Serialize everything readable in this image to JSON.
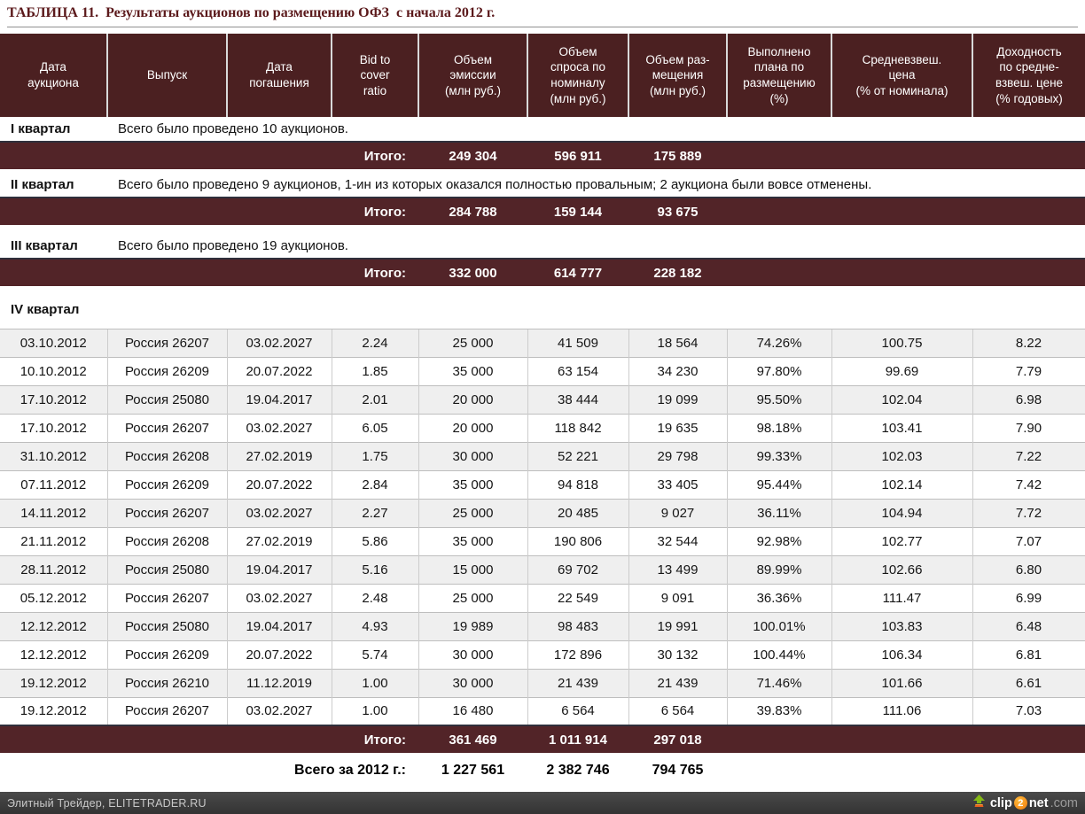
{
  "page": {
    "title": "ТАБЛИЦА 11.  Результаты аукционов по размещению ОФЗ  с начала 2012 г."
  },
  "colors": {
    "header_bg": "#4B2021",
    "total_band_bg": "#522428",
    "row_alt_bg": "#EFEFEF",
    "title_text": "#5B191B",
    "footer_bg": "#3B3B3B",
    "logo_badge_orange": "#F7941E",
    "logo_arrow_green": "#85B916"
  },
  "table": {
    "columns": [
      "Дата\nаукциона",
      "Выпуск",
      "Дата\nпогашения",
      "Bid to\ncover\nratio",
      "Объем\nэмиссии\n(млн руб.)",
      "Объем\nспроса по\nноминалу\n(млн руб.)",
      "Объем раз-\nмещения\n(млн руб.)",
      "Выполнено\nплана по\nразмещению\n(%)",
      "Средневзвеш.\nцена\n(% от номинала)",
      "Доходность\nпо средне-\nвзвеш. цене\n(% годовых)"
    ],
    "total_label": "Итого:",
    "sections": [
      {
        "label": "I квартал",
        "note": "Всего было проведено 10 аукционов.",
        "rows": [],
        "totals": [
          "249 304",
          "596 911",
          "175 889"
        ]
      },
      {
        "label": "II квартал",
        "note": "Всего было проведено 9 аукционов, 1-ин из которых  оказался полностью провальным; 2 аукциона были вовсе отменены.",
        "rows": [],
        "totals": [
          "284 788",
          "159 144",
          "93 675"
        ]
      },
      {
        "label": "III квартал",
        "note": "Всего было проведено 19 аукционов.",
        "rows": [],
        "totals": [
          "332 000",
          "614 777",
          "228 182"
        ]
      },
      {
        "label": "IV квартал",
        "note": "",
        "rows": [
          [
            "03.10.2012",
            "Россия 26207",
            "03.02.2027",
            "2.24",
            "25 000",
            "41 509",
            "18 564",
            "74.26%",
            "100.75",
            "8.22"
          ],
          [
            "10.10.2012",
            "Россия 26209",
            "20.07.2022",
            "1.85",
            "35 000",
            "63 154",
            "34 230",
            "97.80%",
            "99.69",
            "7.79"
          ],
          [
            "17.10.2012",
            "Россия 25080",
            "19.04.2017",
            "2.01",
            "20 000",
            "38 444",
            "19 099",
            "95.50%",
            "102.04",
            "6.98"
          ],
          [
            "17.10.2012",
            "Россия 26207",
            "03.02.2027",
            "6.05",
            "20 000",
            "118 842",
            "19 635",
            "98.18%",
            "103.41",
            "7.90"
          ],
          [
            "31.10.2012",
            "Россия 26208",
            "27.02.2019",
            "1.75",
            "30 000",
            "52 221",
            "29 798",
            "99.33%",
            "102.03",
            "7.22"
          ],
          [
            "07.11.2012",
            "Россия 26209",
            "20.07.2022",
            "2.84",
            "35 000",
            "94 818",
            "33 405",
            "95.44%",
            "102.14",
            "7.42"
          ],
          [
            "14.11.2012",
            "Россия 26207",
            "03.02.2027",
            "2.27",
            "25 000",
            "20 485",
            "9 027",
            "36.11%",
            "104.94",
            "7.72"
          ],
          [
            "21.11.2012",
            "Россия 26208",
            "27.02.2019",
            "5.86",
            "35 000",
            "190 806",
            "32 544",
            "92.98%",
            "102.77",
            "7.07"
          ],
          [
            "28.11.2012",
            "Россия 25080",
            "19.04.2017",
            "5.16",
            "15 000",
            "69 702",
            "13 499",
            "89.99%",
            "102.66",
            "6.80"
          ],
          [
            "05.12.2012",
            "Россия 26207",
            "03.02.2027",
            "2.48",
            "25 000",
            "22 549",
            "9 091",
            "36.36%",
            "111.47",
            "6.99"
          ],
          [
            "12.12.2012",
            "Россия 25080",
            "19.04.2017",
            "4.93",
            "19 989",
            "98 483",
            "19 991",
            "100.01%",
            "103.83",
            "6.48"
          ],
          [
            "12.12.2012",
            "Россия 26209",
            "20.07.2022",
            "5.74",
            "30 000",
            "172 896",
            "30 132",
            "100.44%",
            "106.34",
            "6.81"
          ],
          [
            "19.12.2012",
            "Россия 26210",
            "11.12.2019",
            "1.00",
            "30 000",
            "21 439",
            "21 439",
            "71.46%",
            "101.66",
            "6.61"
          ],
          [
            "19.12.2012",
            "Россия 26207",
            "03.02.2027",
            "1.00",
            "16 480",
            "6 564",
            "6 564",
            "39.83%",
            "111.06",
            "7.03"
          ]
        ],
        "totals": [
          "361 469",
          "1 011 914",
          "297 018"
        ]
      }
    ],
    "grand_total": {
      "label": "Всего за 2012 г.:",
      "values": [
        "1 227 561",
        "2 382 746",
        "794 765"
      ]
    }
  },
  "footer": {
    "source": "Элитный Трейдер, ELITETRADER.RU",
    "logo": {
      "prefix": "clip",
      "badge": "2",
      "suffix": "net",
      "domain": ".com"
    }
  }
}
